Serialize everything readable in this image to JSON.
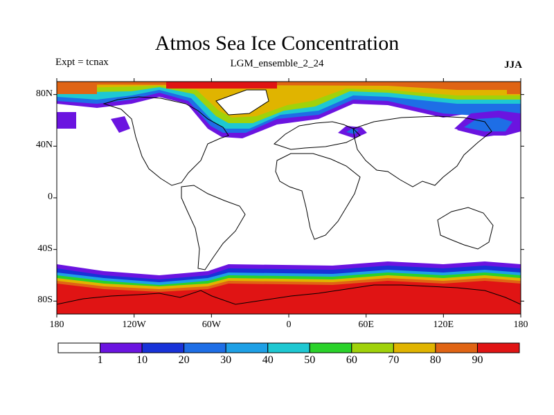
{
  "title": "Atmos Sea Ice Concentration",
  "left_subtitle": "Expt = tcnax",
  "center_subtitle": "LGM_ensemble_2_24",
  "right_subtitle": "JJA",
  "map": {
    "projection": "cylindrical-equidistant",
    "lon_range": [
      -180,
      180
    ],
    "lat_range": [
      -90,
      90
    ],
    "lat_ticks": [
      {
        "value": 80,
        "label": "80N"
      },
      {
        "value": 40,
        "label": "40N"
      },
      {
        "value": 0,
        "label": "0"
      },
      {
        "value": -40,
        "label": "40S"
      },
      {
        "value": -80,
        "label": "80S"
      }
    ],
    "lon_ticks": [
      {
        "value": -180,
        "label": "180"
      },
      {
        "value": -120,
        "label": "120W"
      },
      {
        "value": -60,
        "label": "60W"
      },
      {
        "value": 0,
        "label": "0"
      },
      {
        "value": 60,
        "label": "60E"
      },
      {
        "value": 120,
        "label": "120E"
      },
      {
        "value": 180,
        "label": "180"
      }
    ]
  },
  "colorbar": {
    "colors": [
      "#ffffff",
      "#6b14e0",
      "#1832d8",
      "#1e6ee6",
      "#1ea0e6",
      "#1ec8d2",
      "#2ad22a",
      "#a0d20a",
      "#e0b400",
      "#e06414",
      "#e01414"
    ],
    "labels": [
      "1",
      "10",
      "20",
      "30",
      "40",
      "50",
      "60",
      "70",
      "80",
      "90"
    ]
  },
  "colors": {
    "ocean": "#ffffff",
    "coastline": "#000000"
  }
}
